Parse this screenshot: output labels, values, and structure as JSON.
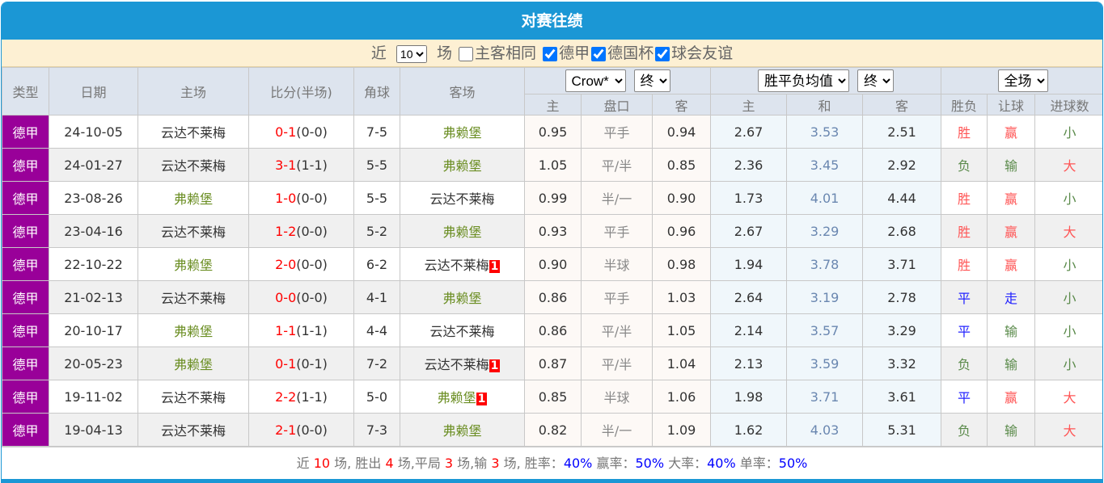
{
  "title": "对赛往绩",
  "filter": {
    "near": "近",
    "count": "10",
    "games": "场",
    "same_label": "主客相同",
    "same": false,
    "leagues": [
      {
        "label": "德甲",
        "checked": true
      },
      {
        "label": "德国杯",
        "checked": true
      },
      {
        "label": "球会友谊",
        "checked": true
      }
    ]
  },
  "header": {
    "type": "类型",
    "date": "日期",
    "home": "主场",
    "score": "比分(半场)",
    "corner": "角球",
    "away": "客场",
    "company": "Crow*",
    "odds_time": "终",
    "avg": "胜平负均值",
    "avg_time": "终",
    "scope": "全场",
    "sub": [
      "主",
      "盘口",
      "客",
      "主",
      "和",
      "客",
      "胜负",
      "让球",
      "进球数"
    ]
  },
  "rows": [
    {
      "type": "德甲",
      "date": "24-10-05",
      "home": "云达不莱梅",
      "ft": "0-1",
      "ht": "(0-0)",
      "corner": "7-5",
      "away": "弗赖堡",
      "badge": "",
      "o1": "0.95",
      "hc": "平手",
      "o2": "0.94",
      "a1": "2.67",
      "ad": "3.53",
      "a2": "2.51",
      "res": "胜",
      "ah": "赢",
      "ou": "小"
    },
    {
      "type": "德甲",
      "date": "24-01-27",
      "home": "云达不莱梅",
      "ft": "3-1",
      "ht": "(1-1)",
      "corner": "5-5",
      "away": "弗赖堡",
      "badge": "",
      "o1": "1.05",
      "hc": "平/半",
      "o2": "0.85",
      "a1": "2.36",
      "ad": "3.45",
      "a2": "2.92",
      "res": "负",
      "ah": "输",
      "ou": "大"
    },
    {
      "type": "德甲",
      "date": "23-08-26",
      "home": "弗赖堡",
      "ft": "1-0",
      "ht": "(0-0)",
      "corner": "5-5",
      "away": "云达不莱梅",
      "badge": "",
      "o1": "0.99",
      "hc": "半/一",
      "o2": "0.90",
      "a1": "1.73",
      "ad": "4.01",
      "a2": "4.44",
      "res": "胜",
      "ah": "赢",
      "ou": "小"
    },
    {
      "type": "德甲",
      "date": "23-04-16",
      "home": "云达不莱梅",
      "ft": "1-2",
      "ht": "(0-0)",
      "corner": "5-2",
      "away": "弗赖堡",
      "badge": "",
      "o1": "0.93",
      "hc": "平手",
      "o2": "0.96",
      "a1": "2.67",
      "ad": "3.29",
      "a2": "2.68",
      "res": "胜",
      "ah": "赢",
      "ou": "大"
    },
    {
      "type": "德甲",
      "date": "22-10-22",
      "home": "弗赖堡",
      "ft": "2-0",
      "ht": "(0-0)",
      "corner": "6-2",
      "away": "云达不莱梅",
      "badge": "1",
      "o1": "0.90",
      "hc": "半球",
      "o2": "0.98",
      "a1": "1.94",
      "ad": "3.78",
      "a2": "3.71",
      "res": "胜",
      "ah": "赢",
      "ou": "小"
    },
    {
      "type": "德甲",
      "date": "21-02-13",
      "home": "云达不莱梅",
      "ft": "0-0",
      "ht": "(0-0)",
      "corner": "4-1",
      "away": "弗赖堡",
      "badge": "",
      "o1": "0.86",
      "hc": "平手",
      "o2": "1.03",
      "a1": "2.64",
      "ad": "3.19",
      "a2": "2.78",
      "res": "平",
      "ah": "走",
      "ou": "小"
    },
    {
      "type": "德甲",
      "date": "20-10-17",
      "home": "弗赖堡",
      "ft": "1-1",
      "ht": "(1-1)",
      "corner": "4-4",
      "away": "云达不莱梅",
      "badge": "",
      "o1": "0.86",
      "hc": "平/半",
      "o2": "1.05",
      "a1": "2.14",
      "ad": "3.57",
      "a2": "3.29",
      "res": "平",
      "ah": "输",
      "ou": "小"
    },
    {
      "type": "德甲",
      "date": "20-05-23",
      "home": "弗赖堡",
      "ft": "0-1",
      "ht": "(0-1)",
      "corner": "7-2",
      "away": "云达不莱梅",
      "badge": "1",
      "o1": "0.87",
      "hc": "平/半",
      "o2": "1.04",
      "a1": "2.13",
      "ad": "3.59",
      "a2": "3.32",
      "res": "负",
      "ah": "输",
      "ou": "小"
    },
    {
      "type": "德甲",
      "date": "19-11-02",
      "home": "云达不莱梅",
      "ft": "2-2",
      "ht": "(1-1)",
      "corner": "5-0",
      "away": "弗赖堡",
      "badge": "1",
      "o1": "0.85",
      "hc": "半球",
      "o2": "1.06",
      "a1": "1.98",
      "ad": "3.71",
      "a2": "3.61",
      "res": "平",
      "ah": "赢",
      "ou": "大"
    },
    {
      "type": "德甲",
      "date": "19-04-13",
      "home": "云达不莱梅",
      "ft": "2-1",
      "ht": "(0-0)",
      "corner": "7-3",
      "away": "弗赖堡",
      "badge": "",
      "o1": "0.82",
      "hc": "半/一",
      "o2": "1.09",
      "a1": "1.62",
      "ad": "4.03",
      "a2": "5.31",
      "res": "负",
      "ah": "输",
      "ou": "大"
    }
  ],
  "footer": [
    {
      "t": "近 ",
      "c": ""
    },
    {
      "t": "10",
      "c": "n"
    },
    {
      "t": " 场, 胜出 ",
      "c": ""
    },
    {
      "t": "4",
      "c": "n"
    },
    {
      "t": " 场,平局 ",
      "c": ""
    },
    {
      "t": "3",
      "c": "n"
    },
    {
      "t": " 场,输 ",
      "c": ""
    },
    {
      "t": "3",
      "c": "n"
    },
    {
      "t": " 场, 胜率：",
      "c": ""
    },
    {
      "t": "40%",
      "c": "p"
    },
    {
      "t": " 赢率：",
      "c": ""
    },
    {
      "t": "50%",
      "c": "p"
    },
    {
      "t": " 大率：",
      "c": ""
    },
    {
      "t": "40%",
      "c": "p"
    },
    {
      "t": " 单率：",
      "c": ""
    },
    {
      "t": "50%",
      "c": "p"
    }
  ],
  "colors": {
    "title_bg": "#1b97d5",
    "type_bg": "#990099",
    "win": "#ff5555",
    "lose": "#5a8a4a",
    "draw": "#2222ff",
    "team": "#6b8e23"
  }
}
